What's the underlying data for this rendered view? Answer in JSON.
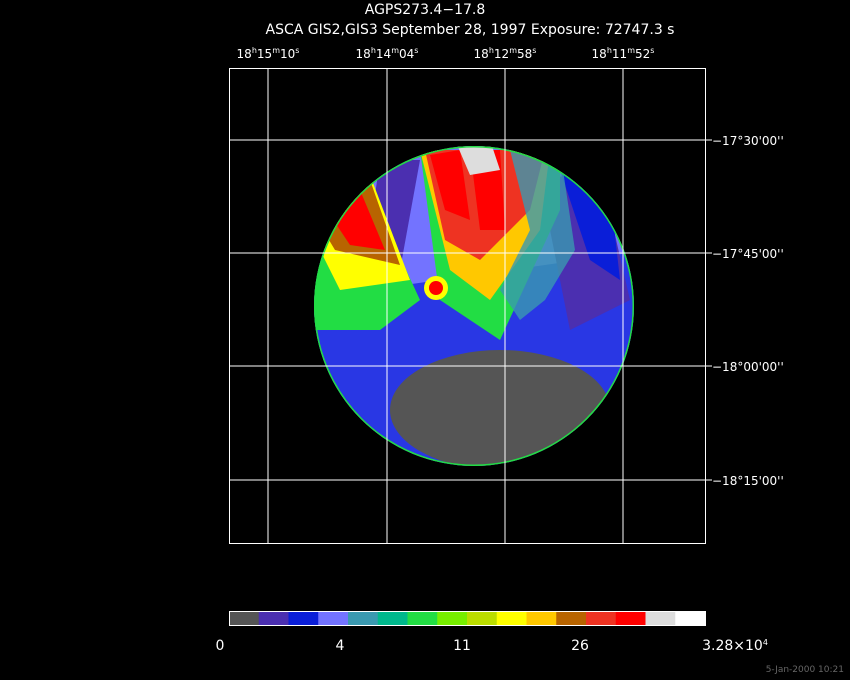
{
  "header": {
    "title": "AGPS273.4−17.8",
    "subtitle": "ASCA GIS2,GIS3 September 28, 1997 Exposure: 72747.3 s"
  },
  "ra_labels": [
    [
      "18",
      "h",
      "15",
      "m",
      "10",
      "s"
    ],
    [
      "18",
      "h",
      "14",
      "m",
      "04",
      "s"
    ],
    [
      "18",
      "h",
      "12",
      "m",
      "58",
      "s"
    ],
    [
      "18",
      "h",
      "11",
      "m",
      "52",
      "s"
    ]
  ],
  "dec_labels": [
    "−17°30'00''",
    "−17°45'00''",
    "−18°00'00''",
    "−18°15'00''"
  ],
  "colorbar": {
    "colors": [
      "#555555",
      "#4b2fb0",
      "#0a1ed8",
      "#7373ff",
      "#3a99b0",
      "#00b88c",
      "#22dd44",
      "#77ee00",
      "#bbdd00",
      "#ffff00",
      "#ffc800",
      "#b86400",
      "#ee3322",
      "#ff0000",
      "#dddddd",
      "#ffffff"
    ],
    "labels": [
      [
        "0"
      ],
      [
        "4"
      ],
      [
        "11"
      ],
      [
        "26"
      ],
      [
        "3.28×10",
        "4"
      ]
    ]
  },
  "footer": "5-Jan-2000 10:21"
}
